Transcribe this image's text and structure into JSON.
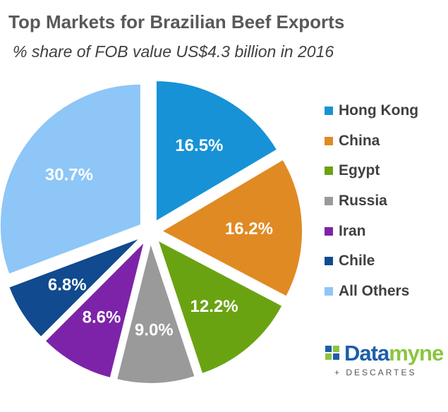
{
  "chart_data": {
    "type": "pie",
    "title": "Top Markets for Brazilian Beef Exports",
    "subtitle": "% share of FOB value US$4.3 billion in 2016",
    "slices": [
      {
        "label": "Hong Kong",
        "value": 16.5,
        "display": "16.5%",
        "color": "#1792d7"
      },
      {
        "label": "China",
        "value": 16.2,
        "display": "16.2%",
        "color": "#e08a23"
      },
      {
        "label": "Egypt",
        "value": 12.2,
        "display": "12.2%",
        "color": "#6aa312"
      },
      {
        "label": "Russia",
        "value": 9.0,
        "display": "9.0%",
        "color": "#9a9a9a"
      },
      {
        "label": "Iran",
        "value": 8.6,
        "display": "8.6%",
        "color": "#7d23a9"
      },
      {
        "label": "Chile",
        "value": 6.8,
        "display": "6.8%",
        "color": "#114a8e"
      },
      {
        "label": "All Others",
        "value": 30.7,
        "display": "30.7%",
        "color": "#8dc6f7"
      }
    ],
    "legend_position": "right",
    "label_color": "#ffffff"
  },
  "logo": {
    "brand_part1": "Data",
    "brand_part2": "myne",
    "tagline": "+ DESCARTES",
    "colors": {
      "primary": "#1d5ea8",
      "secondary": "#8bc53f"
    }
  }
}
